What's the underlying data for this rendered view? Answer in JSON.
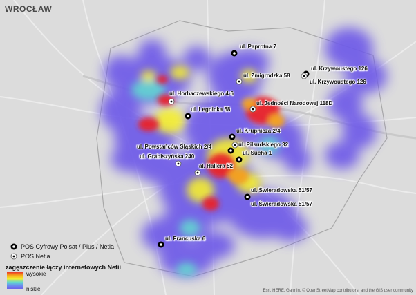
{
  "map": {
    "city_title": "WROCŁAW",
    "attribution": "Esri, HERE, Garmin, © OpenStreetMap contributors, and the GIS user community"
  },
  "poi_labels": [
    "ul. Paprotna 7",
    "ul. Żmigrodzka 58",
    "ul. Krzywoustego 126",
    "ul. Krzywoustego 126",
    "ul. Horbaczewskiego 4-6",
    "ul. Jedności Narodowej 118D",
    "ul. Legnicka 58",
    "ul. Krupnicza 2/4",
    "ul. Powstańców Śląskich 2/4",
    "ul. Piłsudskiego 32",
    "ul. Grabiszyńska 240",
    "ul. Sucha 1",
    "al. Hallera 52",
    "ul. Świeradowska 51/57",
    "ul. Świeradowska 51/57",
    "ul. Francuska 6"
  ],
  "legend": {
    "pos_cyfrowy": "POS Cyfrowy Polsat / Plus / Netia",
    "pos_netia": "POS Netia",
    "density_title": "zagęszczenie łączy internetowych Netii",
    "high": "wysokie",
    "low": "niskie"
  },
  "colors": {
    "background": "#dcdcdc",
    "heat_low": "#6e5ae8",
    "heat_mid": "#f5ef2e",
    "heat_high": "#e8202a"
  }
}
